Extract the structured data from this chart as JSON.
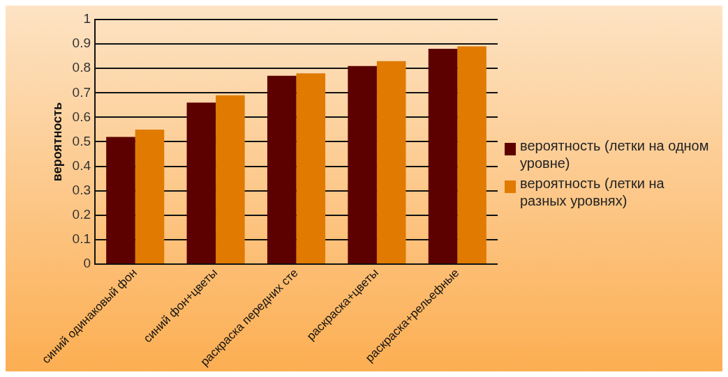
{
  "chart_data": {
    "type": "bar",
    "ylabel": "вероятность",
    "categories": [
      "синий одинаковый фон",
      "синий фон+цветы",
      "раскраска передних сте",
      "раскраска+цветы",
      "раскраска+рельефные"
    ],
    "series": [
      {
        "name": " вероятность (летки на одном уровне)",
        "color": "#5c0000",
        "values": [
          0.52,
          0.66,
          0.77,
          0.81,
          0.88
        ]
      },
      {
        "name": "вероятность (летки на разных уровнях)",
        "color": "#e07a00",
        "values": [
          0.55,
          0.69,
          0.78,
          0.83,
          0.89
        ]
      }
    ],
    "ylim": [
      0,
      1
    ],
    "yticks": [
      0,
      0.1,
      0.2,
      0.3,
      0.4,
      0.5,
      0.6,
      0.7,
      0.8,
      0.9,
      1
    ],
    "grid": "y",
    "legend": "right"
  }
}
